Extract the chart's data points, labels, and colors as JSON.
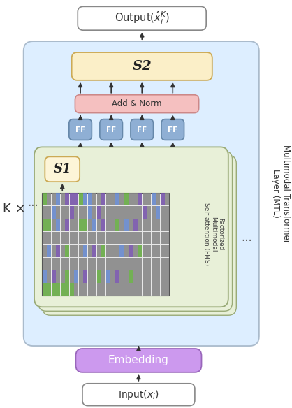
{
  "fig_width": 4.18,
  "fig_height": 5.84,
  "bg_color": "#ffffff",
  "outer_box_color": "#ddeeff",
  "outer_box_edge": "#aabbcc",
  "green_box_color": "#e8f0d8",
  "green_box_edge": "#99aa77",
  "s1_box_color": "#fdf5d8",
  "s1_box_edge": "#ccaa55",
  "s2_box_color": "#fbefc8",
  "s2_box_edge": "#ccaa55",
  "ff_box_color": "#8fafd4",
  "ff_box_edge": "#6688aa",
  "addnorm_box_color": "#f5c0c0",
  "addnorm_box_edge": "#cc8888",
  "embed_box_color": "#cc99ee",
  "embed_box_edge": "#9966bb",
  "input_box_color": "#ffffff",
  "input_box_edge": "#888888",
  "output_box_color": "#ffffff",
  "output_box_edge": "#888888",
  "grid_colors": [
    "#66aa44",
    "#6688cc",
    "#888888",
    "#7755aa"
  ],
  "side_label": "Multimodal Transformer\nLayer (MTL)",
  "k_label": "K ×",
  "s1_label": "S1",
  "s2_label": "S2",
  "ff_label": "FF",
  "addnorm_label": "Add & Norm",
  "embed_label": "Embedding",
  "fms_label": "Factorized\nMultimodal\nSelf-attention (FMS)"
}
